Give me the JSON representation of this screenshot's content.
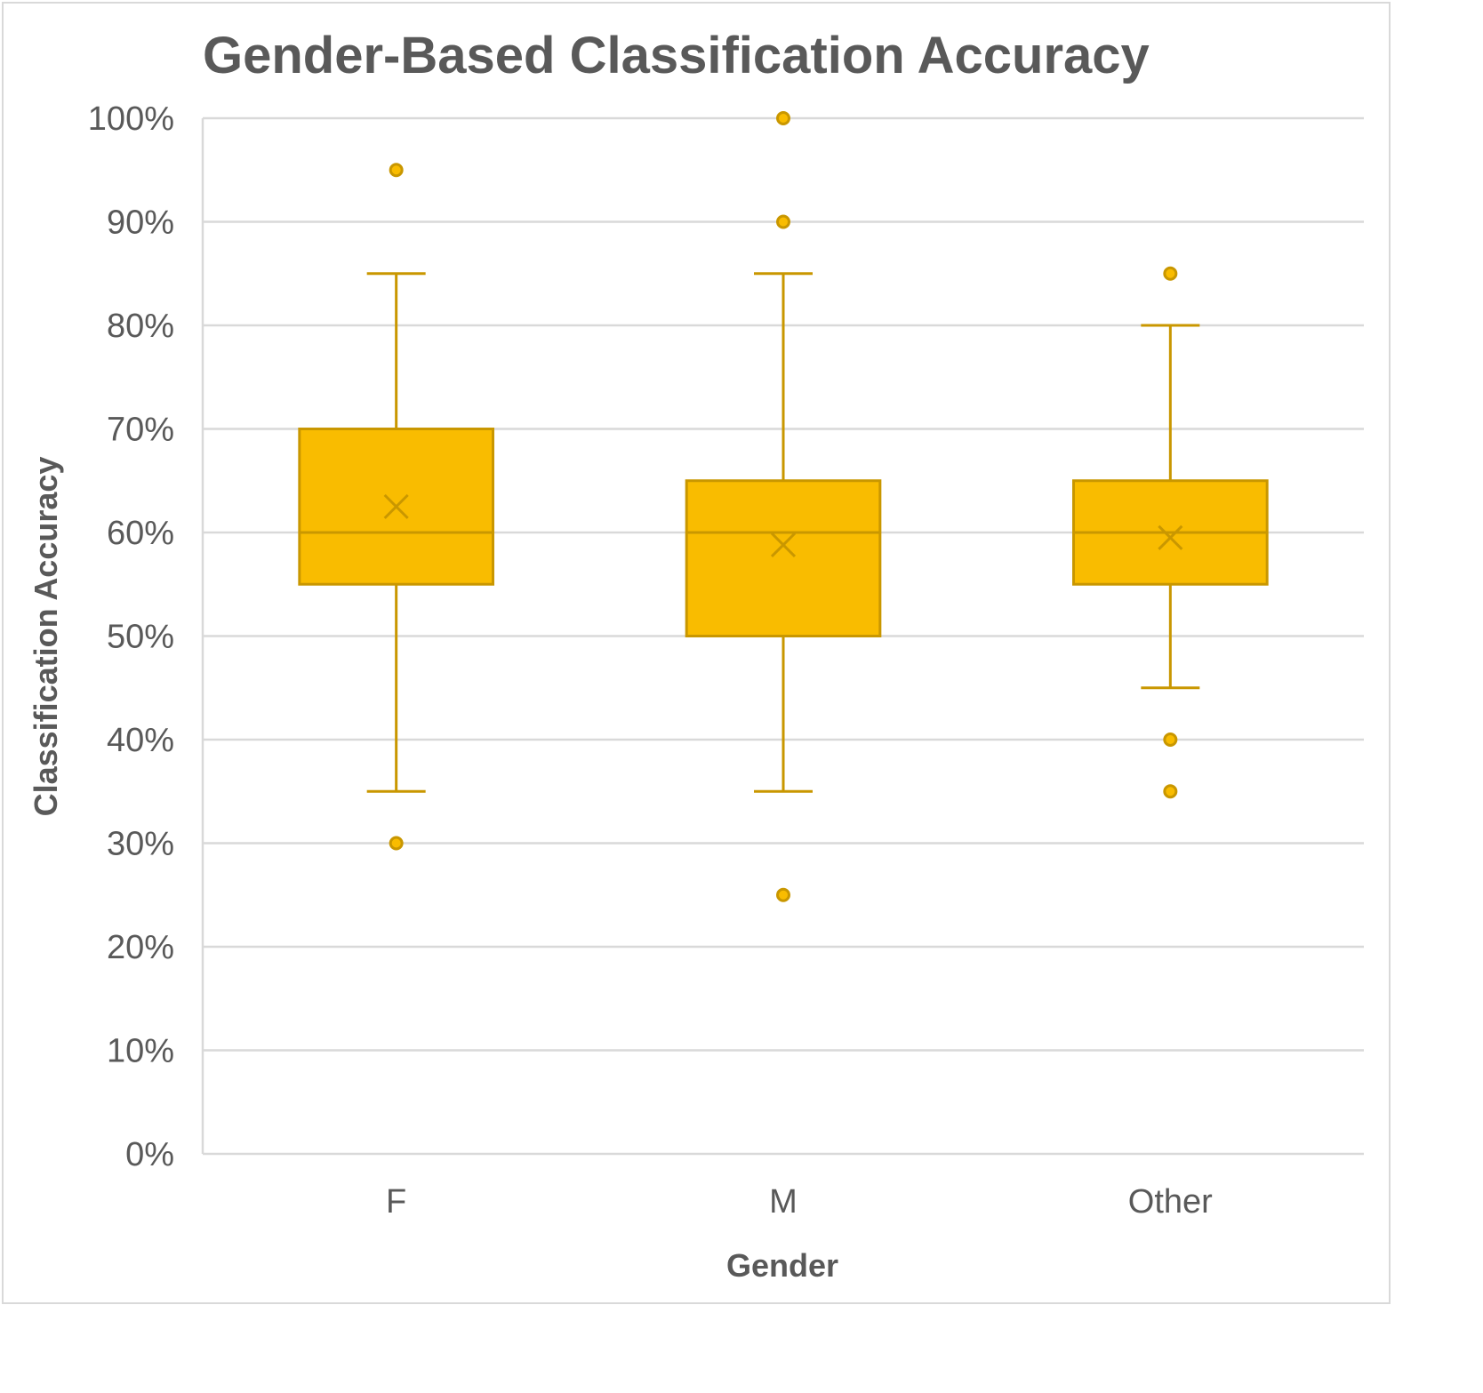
{
  "chart_data": {
    "type": "box",
    "title": "Gender-Based Classification Accuracy",
    "xlabel": "Gender",
    "ylabel": "Classification Accuracy",
    "ylim": [
      0,
      100
    ],
    "y_ticks": [
      "0%",
      "10%",
      "20%",
      "30%",
      "40%",
      "50%",
      "60%",
      "70%",
      "80%",
      "90%",
      "100%"
    ],
    "grid": true,
    "legend": "none",
    "colors": {
      "box_fill": "#F9BC00",
      "box_stroke": "#C99700",
      "whisker": "#C99700",
      "grid": "#D9D9D9",
      "text": "#595959"
    },
    "categories": [
      "F",
      "M",
      "Other"
    ],
    "boxes": [
      {
        "category": "F",
        "whisker_low": 35,
        "q1": 55,
        "median": 60,
        "q3": 70,
        "whisker_high": 85,
        "mean": 62.5,
        "outliers": [
          95,
          30
        ]
      },
      {
        "category": "M",
        "whisker_low": 35,
        "q1": 50,
        "median": 60,
        "q3": 65,
        "whisker_high": 85,
        "mean": 58.8,
        "outliers": [
          100,
          90,
          25
        ]
      },
      {
        "category": "Other",
        "whisker_low": 45,
        "q1": 55,
        "median": 60,
        "q3": 65,
        "whisker_high": 80,
        "mean": 59.5,
        "outliers": [
          85,
          40,
          35
        ]
      }
    ]
  }
}
